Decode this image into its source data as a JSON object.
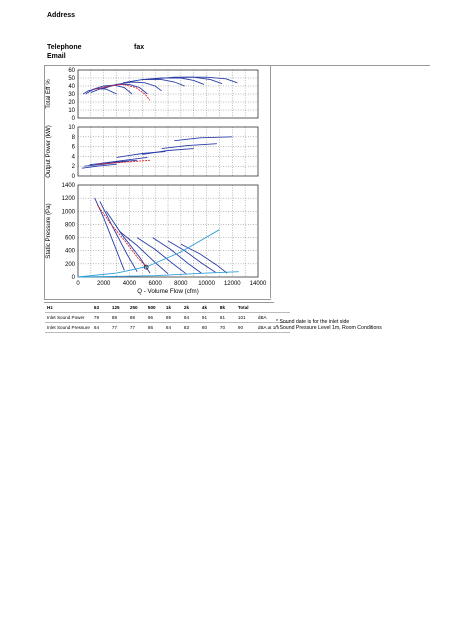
{
  "header": {
    "address_label": "Address",
    "telephone_label": "Telephone",
    "fax_label": "fax",
    "email_label": "Email"
  },
  "colors": {
    "curve_blue": "#2b3fa8",
    "duty_red": "#e0202a",
    "system_cyan": "#2ea0d8",
    "grid": "#555555"
  },
  "chart_data": [
    {
      "type": "line",
      "ylabel": "Total Eff %",
      "ylim": [
        0,
        60
      ],
      "yticks": [
        "0",
        "10",
        "20",
        "30",
        "40",
        "50",
        "60"
      ],
      "xlim": [
        0,
        14000
      ],
      "series": [
        {
          "color": "blue",
          "x": [
            400,
            800,
            1500,
            2200,
            3000
          ],
          "y": [
            30,
            34,
            37,
            36,
            30
          ]
        },
        {
          "color": "blue",
          "x": [
            600,
            1200,
            2000,
            2800,
            3600,
            4200
          ],
          "y": [
            30,
            36,
            40,
            41,
            38,
            30
          ]
        },
        {
          "color": "blue",
          "x": [
            1000,
            2000,
            3000,
            4000,
            4800,
            5400
          ],
          "y": [
            32,
            38,
            42,
            42,
            38,
            30
          ]
        },
        {
          "color": "blue",
          "x": [
            1800,
            3000,
            4200,
            5200,
            6000,
            6500
          ],
          "y": [
            36,
            42,
            45,
            44,
            40,
            34
          ]
        },
        {
          "color": "blue",
          "x": [
            3500,
            5000,
            6500,
            7500,
            8300
          ],
          "y": [
            44,
            48,
            48,
            45,
            40
          ]
        },
        {
          "color": "blue",
          "x": [
            5000,
            6500,
            8000,
            9000,
            9800
          ],
          "y": [
            48,
            50,
            50,
            47,
            42
          ]
        },
        {
          "color": "blue",
          "x": [
            6000,
            7500,
            9000,
            10300,
            11200
          ],
          "y": [
            49,
            51,
            51,
            48,
            43
          ]
        },
        {
          "color": "blue",
          "x": [
            7000,
            8500,
            10000,
            11500,
            12400
          ],
          "y": [
            50,
            51,
            51,
            49,
            44
          ]
        },
        {
          "color": "red",
          "x": [
            1300,
            2500,
            3500,
            4500,
            5200,
            5600
          ],
          "y": [
            36,
            40,
            42,
            38,
            30,
            22
          ]
        }
      ]
    },
    {
      "type": "line",
      "ylabel": "Output Power (kW)",
      "ylim": [
        0,
        10
      ],
      "yticks": [
        "0",
        "2",
        "4",
        "6",
        "8",
        "10"
      ],
      "xlim": [
        0,
        14000
      ],
      "series": [
        {
          "color": "blue",
          "x": [
            300,
            1500,
            3000
          ],
          "y": [
            1.6,
            2.0,
            2.4
          ]
        },
        {
          "color": "blue",
          "x": [
            500,
            2000,
            3800
          ],
          "y": [
            2.0,
            2.4,
            3.0
          ]
        },
        {
          "color": "blue",
          "x": [
            900,
            2600,
            4600
          ],
          "y": [
            2.3,
            2.8,
            3.2
          ]
        },
        {
          "color": "blue",
          "x": [
            1800,
            3600,
            5400
          ],
          "y": [
            2.6,
            3.2,
            3.8
          ]
        },
        {
          "color": "blue",
          "x": [
            3000,
            5000,
            6800
          ],
          "y": [
            3.8,
            4.6,
            5.0
          ]
        },
        {
          "color": "blue",
          "x": [
            5000,
            7000,
            9000
          ],
          "y": [
            4.4,
            5.2,
            5.6
          ]
        },
        {
          "color": "blue",
          "x": [
            6500,
            8500,
            10800
          ],
          "y": [
            5.6,
            6.2,
            6.6
          ]
        },
        {
          "color": "blue",
          "x": [
            7500,
            9500,
            12000
          ],
          "y": [
            7.2,
            7.8,
            8.0
          ]
        },
        {
          "color": "red",
          "x": [
            1500,
            3500,
            5600
          ],
          "y": [
            2.4,
            2.8,
            3.2
          ]
        }
      ]
    },
    {
      "type": "line",
      "ylabel": "Static Pressure (Pa)",
      "xlabel": "Q - Volume Flow (cfm)",
      "ylim": [
        0,
        1400
      ],
      "yticks": [
        "0",
        "200",
        "400",
        "600",
        "800",
        "1000",
        "1200",
        "1400"
      ],
      "xlim": [
        0,
        14000
      ],
      "xticks": [
        "0",
        "2000",
        "4000",
        "6000",
        "8000",
        "10000",
        "12000",
        "14000"
      ],
      "series": [
        {
          "color": "blue",
          "x": [
            1300,
            2000,
            3000,
            3600
          ],
          "y": [
            1200,
            900,
            400,
            100
          ]
        },
        {
          "color": "blue",
          "x": [
            1700,
            2600,
            3800,
            4600
          ],
          "y": [
            1150,
            800,
            350,
            80
          ]
        },
        {
          "color": "blue",
          "x": [
            2200,
            3400,
            4800,
            5600
          ],
          "y": [
            1000,
            650,
            300,
            60
          ]
        },
        {
          "color": "blue",
          "x": [
            3200,
            4600,
            6000,
            7000
          ],
          "y": [
            700,
            480,
            220,
            50
          ]
        },
        {
          "color": "blue",
          "x": [
            4600,
            6000,
            7400,
            8400
          ],
          "y": [
            600,
            420,
            200,
            50
          ]
        },
        {
          "color": "blue",
          "x": [
            5800,
            7200,
            8600,
            9600
          ],
          "y": [
            600,
            420,
            200,
            60
          ]
        },
        {
          "color": "blue",
          "x": [
            7000,
            8300,
            9700,
            10700
          ],
          "y": [
            550,
            400,
            200,
            70
          ]
        },
        {
          "color": "blue",
          "x": [
            8000,
            9500,
            10800,
            11600
          ],
          "y": [
            500,
            350,
            180,
            60
          ]
        },
        {
          "color": "red",
          "x": [
            1500,
            2500,
            3600,
            4700,
            5300
          ],
          "y": [
            1100,
            820,
            560,
            280,
            160
          ]
        },
        {
          "color": "cyan",
          "x": [
            0,
            3000,
            5400,
            8000,
            11000
          ],
          "y": [
            0,
            60,
            160,
            380,
            720
          ]
        },
        {
          "color": "cyan",
          "x": [
            0,
            6000,
            10000,
            12500
          ],
          "y": [
            0,
            20,
            60,
            80
          ]
        }
      ],
      "duty_point": {
        "x": 5300,
        "y": 150
      }
    }
  ],
  "sound_table": {
    "headers": [
      "Hz",
      "63",
      "125",
      "250",
      "500",
      "1k",
      "2k",
      "4k",
      "8k",
      "Total",
      ""
    ],
    "rows": [
      [
        "Inlet Sound Power",
        "79",
        "88",
        "88",
        "96",
        "95",
        "94",
        "91",
        "81",
        "101",
        "dBA"
      ],
      [
        "Inlet Sound Pressure",
        "64",
        "77",
        "77",
        "86",
        "84",
        "83",
        "80",
        "70",
        "90",
        "dBA at 1m"
      ]
    ]
  },
  "notes": [
    "* Sound date is for the inlet side",
    "* Sound Pressure Level 1m, Room Conditions"
  ]
}
